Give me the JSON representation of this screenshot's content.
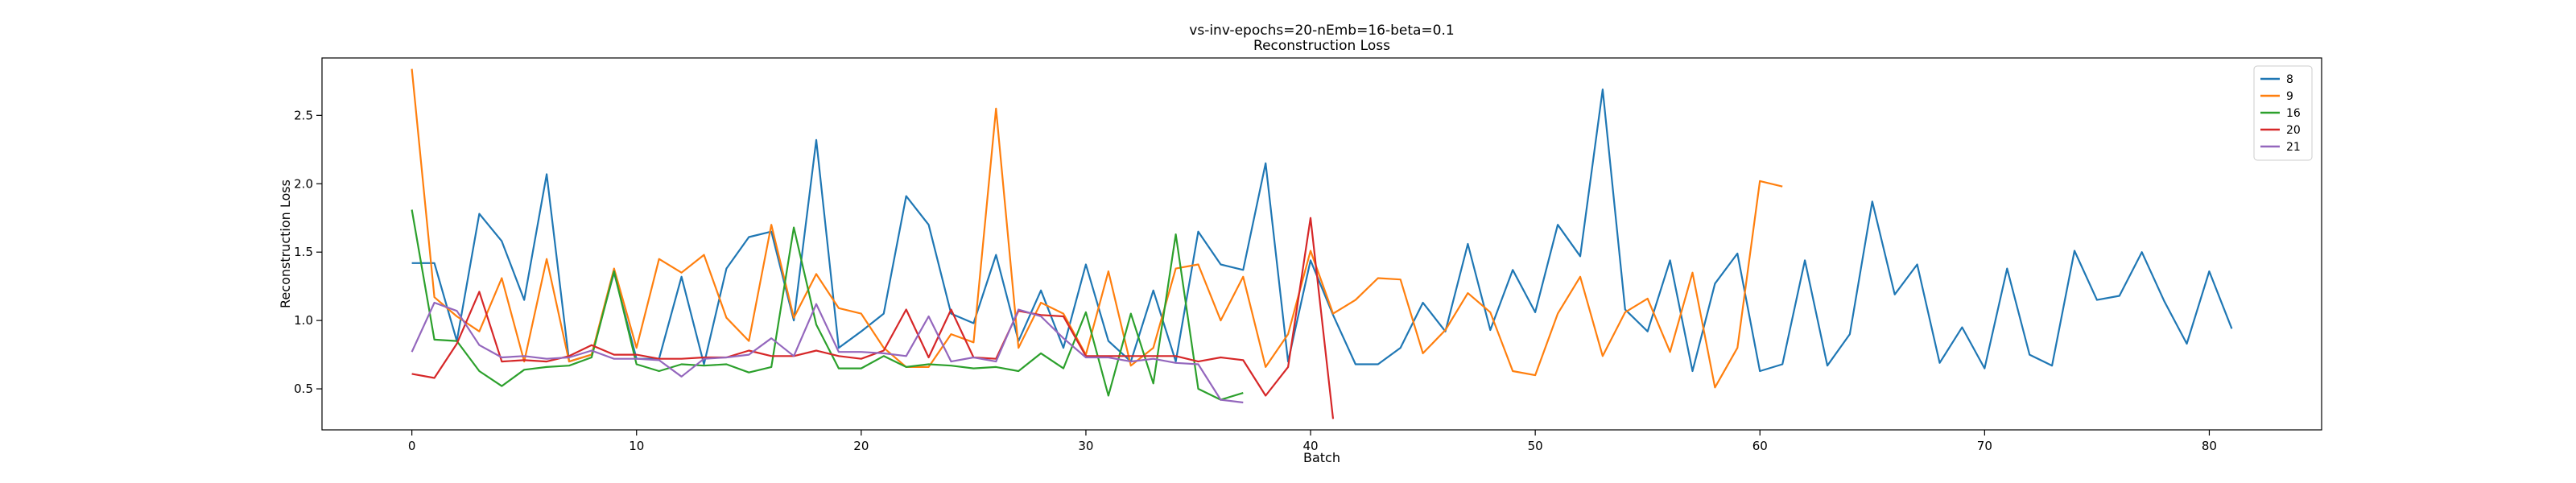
{
  "chart_data": {
    "type": "line",
    "title": "vs-inv-epochs=20-nEmb=16-beta=0.1",
    "subtitle": "Reconstruction Loss",
    "xlabel": "Batch",
    "ylabel": "Reconstruction Loss",
    "xlim": [
      -4,
      85
    ],
    "ylim": [
      0.2,
      2.92
    ],
    "xticks": [
      0,
      10,
      20,
      30,
      40,
      50,
      60,
      70,
      80
    ],
    "yticks": [
      0.5,
      1.0,
      1.5,
      2.0,
      2.5
    ],
    "grid": false,
    "legend_position": "top-right",
    "series": [
      {
        "name": "8",
        "color": "#1f77b4",
        "values": [
          1.42,
          1.42,
          0.85,
          1.78,
          1.58,
          1.15,
          2.07,
          0.7,
          0.75,
          1.35,
          0.72,
          0.72,
          1.32,
          0.68,
          1.38,
          1.61,
          1.65,
          1.0,
          2.32,
          0.8,
          0.92,
          1.05,
          1.91,
          1.7,
          1.05,
          0.98,
          1.48,
          0.85,
          1.22,
          0.8,
          1.41,
          0.85,
          0.7,
          1.22,
          0.7,
          1.65,
          1.41,
          1.37,
          2.15,
          0.7,
          1.44,
          1.04,
          0.68,
          0.68,
          0.8,
          1.13,
          0.92,
          1.56,
          0.93,
          1.37,
          1.06,
          1.7,
          1.47,
          2.69,
          1.08,
          0.92,
          1.44,
          0.63,
          1.27,
          1.49,
          0.63,
          0.68,
          1.44,
          0.67,
          0.9,
          1.87,
          1.19,
          1.41,
          0.69,
          0.95,
          0.65,
          1.38,
          0.75,
          0.67,
          1.51,
          1.15,
          1.18,
          1.5,
          1.14,
          0.83,
          1.36,
          0.94
        ]
      },
      {
        "name": "9",
        "color": "#ff7f0e",
        "values": [
          2.84,
          1.17,
          1.03,
          0.92,
          1.31,
          0.7,
          1.45,
          0.7,
          0.75,
          1.38,
          0.8,
          1.45,
          1.35,
          1.48,
          1.02,
          0.85,
          1.7,
          1.02,
          1.34,
          1.09,
          1.05,
          0.8,
          0.66,
          0.66,
          0.9,
          0.84,
          2.55,
          0.8,
          1.13,
          1.05,
          0.75,
          1.36,
          0.67,
          0.8,
          1.38,
          1.41,
          1.0,
          1.32,
          0.66,
          0.9,
          1.51,
          1.05,
          1.15,
          1.31,
          1.3,
          0.76,
          0.93,
          1.2,
          1.06,
          0.63,
          0.6,
          1.05,
          1.32,
          0.74,
          1.06,
          1.16,
          0.77,
          1.35,
          0.51,
          0.8,
          2.02,
          1.98
        ]
      },
      {
        "name": "16",
        "color": "#2ca02c",
        "values": [
          1.81,
          0.86,
          0.85,
          0.63,
          0.52,
          0.64,
          0.66,
          0.67,
          0.73,
          1.36,
          0.68,
          0.63,
          0.68,
          0.67,
          0.68,
          0.62,
          0.66,
          1.68,
          0.97,
          0.65,
          0.65,
          0.74,
          0.66,
          0.68,
          0.67,
          0.65,
          0.66,
          0.63,
          0.76,
          0.65,
          1.06,
          0.45,
          1.05,
          0.54,
          1.63,
          0.5,
          0.42,
          0.47
        ]
      },
      {
        "name": "20",
        "color": "#d62728",
        "values": [
          0.61,
          0.58,
          0.83,
          1.21,
          0.7,
          0.71,
          0.7,
          0.74,
          0.82,
          0.75,
          0.75,
          0.72,
          0.72,
          0.73,
          0.73,
          0.78,
          0.74,
          0.74,
          0.78,
          0.74,
          0.72,
          0.78,
          1.08,
          0.73,
          1.08,
          0.73,
          0.72,
          1.07,
          1.04,
          1.03,
          0.74,
          0.74,
          0.74,
          0.74,
          0.74,
          0.7,
          0.73,
          0.71,
          0.45,
          0.66,
          1.75,
          0.28
        ]
      },
      {
        "name": "21",
        "color": "#9467bd",
        "values": [
          0.77,
          1.13,
          1.07,
          0.82,
          0.73,
          0.74,
          0.72,
          0.73,
          0.78,
          0.72,
          0.72,
          0.71,
          0.59,
          0.72,
          0.73,
          0.75,
          0.87,
          0.74,
          1.12,
          0.77,
          0.77,
          0.76,
          0.74,
          1.03,
          0.7,
          0.73,
          0.7,
          1.08,
          1.03,
          0.87,
          0.73,
          0.73,
          0.7,
          0.72,
          0.69,
          0.68,
          0.42,
          0.4
        ]
      }
    ]
  }
}
